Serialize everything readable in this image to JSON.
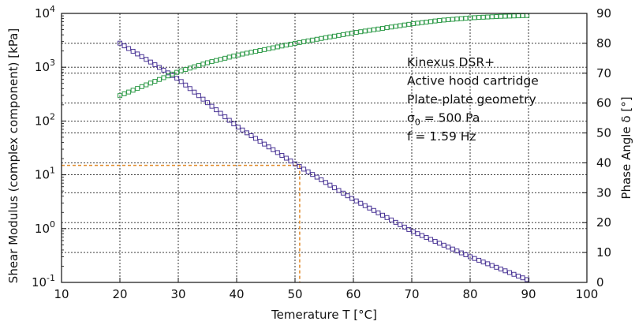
{
  "chart_data": {
    "type": "scatter",
    "xlabel": "Temerature T [°C]",
    "ylabel": "Shear Modulus (complex component) [kPa]",
    "y2label": "Phase Angle δ [°]",
    "xlim": [
      10,
      100
    ],
    "ylim": [
      0.1,
      10000
    ],
    "yscale": "log",
    "y2lim": [
      0,
      90
    ],
    "grid": true,
    "x_ticks": [
      "10",
      "20",
      "30",
      "40",
      "50",
      "60",
      "70",
      "80",
      "90",
      "100"
    ],
    "y_ticks": [
      {
        "base": "10",
        "exp": "-1"
      },
      {
        "base": "10",
        "exp": "0"
      },
      {
        "base": "10",
        "exp": "1"
      },
      {
        "base": "10",
        "exp": "2"
      },
      {
        "base": "10",
        "exp": "3"
      },
      {
        "base": "10",
        "exp": "4"
      }
    ],
    "y2_ticks": [
      "0",
      "10",
      "20",
      "30",
      "40",
      "50",
      "60",
      "70",
      "80",
      "90"
    ],
    "annotation_lines": [
      {
        "parts": [
          {
            "t": "Kinexus DSR+"
          }
        ]
      },
      {
        "parts": [
          {
            "t": "Active hood cartridge"
          }
        ]
      },
      {
        "parts": [
          {
            "t": "Plate-plate geometry"
          }
        ]
      },
      {
        "parts": [
          {
            "t": "σ"
          },
          {
            "t": "0",
            "sub": true
          },
          {
            "t": " = 500 Pa"
          }
        ]
      },
      {
        "parts": [
          {
            "t": "f = 1.59 Hz"
          }
        ]
      }
    ],
    "series": [
      {
        "axis": "left",
        "color": "#4b3696",
        "marker": "square-open",
        "x": [
          20,
          30,
          40,
          50,
          60,
          70,
          80,
          90
        ],
        "y": [
          2800,
          600,
          80,
          16,
          3.5,
          0.9,
          0.3,
          0.11
        ]
      },
      {
        "axis": "right",
        "color": "#2e9a48",
        "marker": "square-open",
        "x": [
          20,
          25,
          30,
          35,
          40,
          45,
          50,
          55,
          60,
          65,
          70,
          75,
          80,
          85,
          90
        ],
        "y": [
          62.5,
          66.5,
          70.5,
          73.5,
          76,
          78,
          80,
          81.8,
          83.5,
          85,
          86.5,
          87.7,
          88.5,
          89,
          89.3
        ]
      }
    ],
    "reference_point": {
      "x": 50.8,
      "y": 15,
      "color": "#e08a2a",
      "style": "dashed"
    }
  }
}
